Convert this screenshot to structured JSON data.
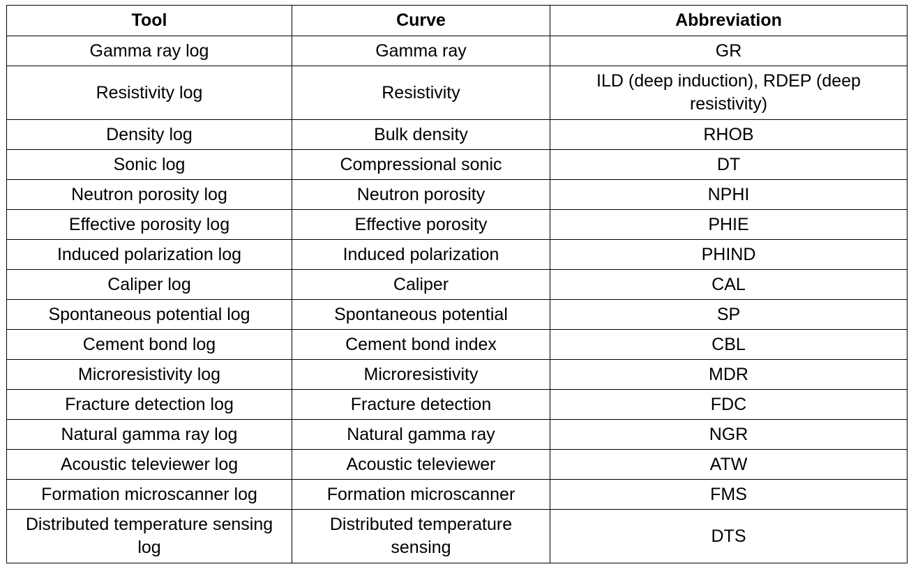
{
  "table": {
    "headers": [
      "Tool",
      "Curve",
      "Abbreviation"
    ],
    "rows": [
      [
        "Gamma ray log",
        "Gamma ray",
        "GR"
      ],
      [
        "Resistivity log",
        "Resistivity",
        "ILD (deep induction), RDEP (deep resistivity)"
      ],
      [
        "Density log",
        "Bulk density",
        "RHOB"
      ],
      [
        "Sonic log",
        "Compressional sonic",
        "DT"
      ],
      [
        "Neutron porosity log",
        "Neutron porosity",
        "NPHI"
      ],
      [
        "Effective porosity log",
        "Effective porosity",
        "PHIE"
      ],
      [
        "Induced polarization log",
        "Induced polarization",
        "PHIND"
      ],
      [
        "Caliper log",
        "Caliper",
        "CAL"
      ],
      [
        "Spontaneous potential log",
        "Spontaneous potential",
        "SP"
      ],
      [
        "Cement bond log",
        "Cement bond index",
        "CBL"
      ],
      [
        "Microresistivity log",
        "Microresistivity",
        "MDR"
      ],
      [
        "Fracture detection log",
        "Fracture detection",
        "FDC"
      ],
      [
        "Natural gamma ray log",
        "Natural gamma ray",
        "NGR"
      ],
      [
        "Acoustic televiewer log",
        "Acoustic televiewer",
        "ATW"
      ],
      [
        "Formation microscanner log",
        "Formation microscanner",
        "FMS"
      ],
      [
        "Distributed temperature sensing log",
        "Distributed temperature sensing",
        "DTS"
      ]
    ]
  }
}
